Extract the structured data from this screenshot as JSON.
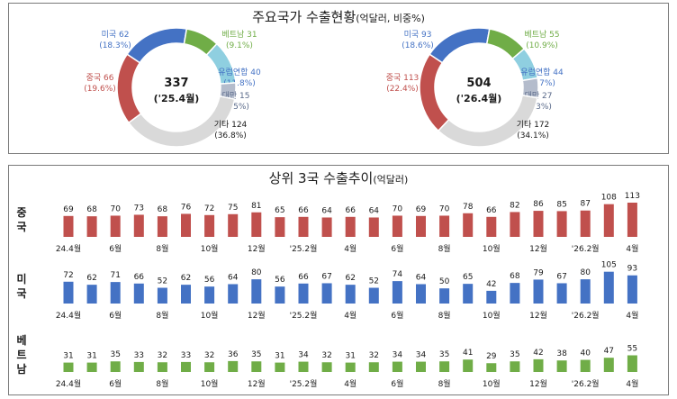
{
  "top_title": {
    "main": "주요국가 수출현황",
    "unit": "(억달러, 비중%)"
  },
  "bottom_title": {
    "main": "상위 3국 수출추이",
    "unit": "(억달러)"
  },
  "colors": {
    "china": "#c0504d",
    "usa": "#4472c4",
    "vietnam": "#70ad47",
    "eu": "#8fcfe0",
    "taiwan": "#b4bccc",
    "other": "#d9d9d9",
    "text": "#1a1a1a"
  },
  "chart_data": [
    {
      "type": "pie",
      "title": "",
      "center_value": "337",
      "center_label": "('25.4월)",
      "slices": [
        {
          "name": "미국",
          "value": 62,
          "share": "(18.3%)"
        },
        {
          "name": "베트남",
          "value": 31,
          "share": "(9.1%)"
        },
        {
          "name": "유럽연합",
          "value": 40,
          "share": "(11.8%)"
        },
        {
          "name": "대만",
          "value": 15,
          "share": "(4.5%)"
        },
        {
          "name": "기타",
          "value": 124,
          "share": "(36.8%)"
        },
        {
          "name": "중국",
          "value": 66,
          "share": "(19.6%)"
        }
      ]
    },
    {
      "type": "pie",
      "title": "",
      "center_value": "504",
      "center_label": "('26.4월)",
      "slices": [
        {
          "name": "미국",
          "value": 93,
          "share": "(18.6%)"
        },
        {
          "name": "베트남",
          "value": 55,
          "share": "(10.9%)"
        },
        {
          "name": "유럽연합",
          "value": 44,
          "share": "(8.7%)"
        },
        {
          "name": "대만",
          "value": 27,
          "share": "(5.3%)"
        },
        {
          "name": "기타",
          "value": 172,
          "share": "(34.1%)"
        },
        {
          "name": "중국",
          "value": 113,
          "share": "(22.4%)"
        }
      ]
    },
    {
      "type": "bar",
      "categories": [
        "24.4월",
        "",
        "6월",
        "",
        "8월",
        "",
        "10월",
        "",
        "12월",
        "",
        "'25.2월",
        "",
        "4월",
        "",
        "6월",
        "",
        "8월",
        "",
        "10월",
        "",
        "12월",
        "",
        "'26.2월",
        "",
        "4월"
      ],
      "series": [
        {
          "name": "중국",
          "values": [
            69,
            68,
            70,
            73,
            68,
            76,
            72,
            75,
            81,
            65,
            66,
            64,
            66,
            64,
            70,
            69,
            70,
            78,
            66,
            82,
            86,
            85,
            87,
            108,
            113
          ]
        },
        {
          "name": "미국",
          "values": [
            72,
            62,
            71,
            66,
            52,
            62,
            56,
            64,
            80,
            56,
            66,
            67,
            62,
            52,
            74,
            64,
            50,
            65,
            42,
            68,
            79,
            67,
            80,
            105,
            93
          ]
        },
        {
          "name": "베트남",
          "values": [
            31,
            31,
            35,
            33,
            32,
            33,
            32,
            36,
            35,
            31,
            34,
            32,
            31,
            32,
            34,
            34,
            35,
            41,
            29,
            35,
            42,
            38,
            40,
            47,
            55
          ]
        }
      ]
    }
  ]
}
